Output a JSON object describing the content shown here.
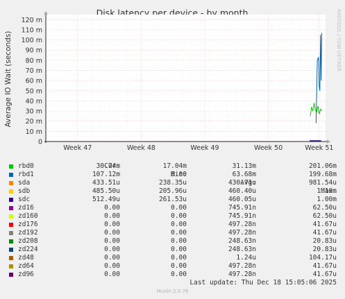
{
  "side_label": "RRDTOOL / TOBI OETIKER",
  "chart_data": {
    "type": "line",
    "title": "Disk latency per device - by month",
    "ylabel": "Average IO Wait (seconds)",
    "ylim": [
      0,
      0.125
    ],
    "yticks": [
      0,
      0.01,
      0.02,
      0.03,
      0.04,
      0.05,
      0.06,
      0.07,
      0.08,
      0.09,
      0.1,
      0.11,
      0.12
    ],
    "ytick_labels": [
      "0",
      "10 m",
      "20 m",
      "30 m",
      "40 m",
      "50 m",
      "60 m",
      "70 m",
      "80 m",
      "90 m",
      "100 m",
      "110 m",
      "120 m"
    ],
    "xrange": [
      0,
      4.4
    ],
    "xticks": [
      0.5,
      1.5,
      2.5,
      3.5,
      4.3
    ],
    "xtick_labels": [
      "Week 47",
      "Week 48",
      "Week 49",
      "Week 50",
      "Week 51"
    ],
    "grid": true,
    "series": [
      {
        "name": "rbd0",
        "color": "#00cc00",
        "x": [
          4.16,
          4.18,
          4.2,
          4.22,
          4.24,
          4.26,
          4.28,
          4.3,
          4.32,
          4.34
        ],
        "y": [
          0.025,
          0.034,
          0.03,
          0.038,
          0.031,
          0.029,
          0.035,
          0.027,
          0.032,
          0.03
        ]
      },
      {
        "name": "rbd1",
        "color": "#0066b3",
        "x": [
          4.25,
          4.27,
          4.29,
          4.3,
          4.31,
          4.32,
          4.33,
          4.34
        ],
        "y": [
          0.018,
          0.08,
          0.083,
          0.055,
          0.05,
          0.105,
          0.06,
          0.107
        ]
      },
      {
        "name": "sda",
        "color": "#ff8000",
        "x": [],
        "y": []
      },
      {
        "name": "sdb",
        "color": "#ffcc00",
        "x": [],
        "y": []
      },
      {
        "name": "sdc",
        "color": "#330099",
        "x": [
          4.15,
          4.33
        ],
        "y": [
          0.0005,
          0.0005
        ]
      },
      {
        "name": "zd16",
        "color": "#990099",
        "x": [],
        "y": []
      },
      {
        "name": "zd160",
        "color": "#ccff00",
        "x": [],
        "y": []
      },
      {
        "name": "zd176",
        "color": "#ff0000",
        "x": [],
        "y": []
      },
      {
        "name": "zd192",
        "color": "#808080",
        "x": [],
        "y": []
      },
      {
        "name": "zd208",
        "color": "#008f00",
        "x": [],
        "y": []
      },
      {
        "name": "zd224",
        "color": "#00487d",
        "x": [],
        "y": []
      },
      {
        "name": "zd48",
        "color": "#b35a00",
        "x": [],
        "y": []
      },
      {
        "name": "zd64",
        "color": "#b38f00",
        "x": [],
        "y": []
      },
      {
        "name": "zd96",
        "color": "#6b006b",
        "x": [],
        "y": []
      }
    ]
  },
  "legend": {
    "headers": {
      "cur": "Cur:",
      "min": "Min:",
      "avg": "Avg:",
      "max": "Max:"
    },
    "rows": [
      {
        "name": "rbd0",
        "color": "#00cc00",
        "cur": "30.74m",
        "min": "17.04m",
        "avg": "31.13m",
        "max": "201.06m"
      },
      {
        "name": "rbd1",
        "color": "#0066b3",
        "cur": "107.12m",
        "min": "0.00",
        "avg": "63.68m",
        "max": "199.68m"
      },
      {
        "name": "sda",
        "color": "#ff8000",
        "cur": "433.51u",
        "min": "238.35u",
        "avg": "430.71u",
        "max": "981.54u"
      },
      {
        "name": "sdb",
        "color": "#ffcc00",
        "cur": "485.50u",
        "min": "205.96u",
        "avg": "460.40u",
        "max": "1.10m"
      },
      {
        "name": "sdc",
        "color": "#330099",
        "cur": "512.49u",
        "min": "261.53u",
        "avg": "460.05u",
        "max": "1.00m"
      },
      {
        "name": "zd16",
        "color": "#990099",
        "cur": "0.00",
        "min": "0.00",
        "avg": "745.91n",
        "max": "62.50u"
      },
      {
        "name": "zd160",
        "color": "#ccff00",
        "cur": "0.00",
        "min": "0.00",
        "avg": "745.91n",
        "max": "62.50u"
      },
      {
        "name": "zd176",
        "color": "#ff0000",
        "cur": "0.00",
        "min": "0.00",
        "avg": "497.28n",
        "max": "41.67u"
      },
      {
        "name": "zd192",
        "color": "#808080",
        "cur": "0.00",
        "min": "0.00",
        "avg": "497.28n",
        "max": "41.67u"
      },
      {
        "name": "zd208",
        "color": "#008f00",
        "cur": "0.00",
        "min": "0.00",
        "avg": "248.63n",
        "max": "20.83u"
      },
      {
        "name": "zd224",
        "color": "#00487d",
        "cur": "0.00",
        "min": "0.00",
        "avg": "248.63n",
        "max": "20.83u"
      },
      {
        "name": "zd48",
        "color": "#b35a00",
        "cur": "0.00",
        "min": "0.00",
        "avg": "1.24u",
        "max": "104.17u"
      },
      {
        "name": "zd64",
        "color": "#b38f00",
        "cur": "0.00",
        "min": "0.00",
        "avg": "497.28n",
        "max": "41.67u"
      },
      {
        "name": "zd96",
        "color": "#6b006b",
        "cur": "0.00",
        "min": "0.00",
        "avg": "497.28n",
        "max": "41.67u"
      }
    ]
  },
  "last_update": "Last update: Thu Dec 18 15:05:06 2025",
  "munin_version": "Munin 2.0.76"
}
